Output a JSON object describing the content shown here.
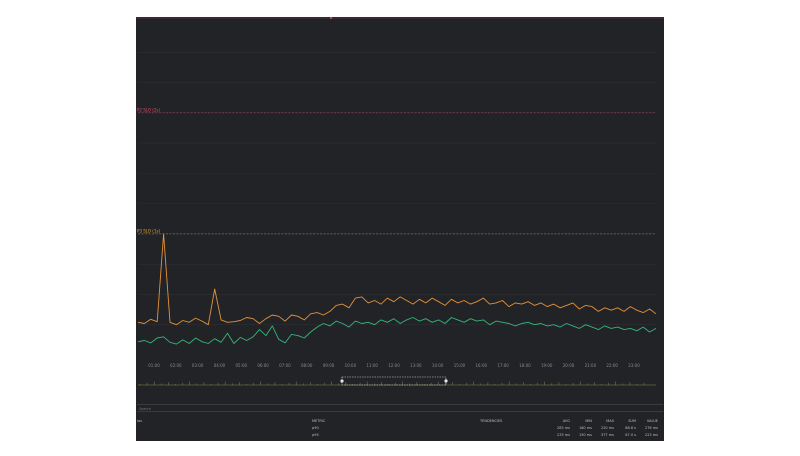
{
  "panel": {
    "background": "#222327"
  },
  "thresholds": [
    {
      "label": "P2 SLO (2s)",
      "value": 2000,
      "color": "#e0526a"
    },
    {
      "label": "P3 SLO (1s)",
      "value": 1000,
      "color": "#e6a23c"
    }
  ],
  "chart_data": {
    "type": "line",
    "title": "",
    "xlabel": "",
    "ylabel": "",
    "ylim": [
      0,
      2750
    ],
    "grid": true,
    "x_ticks": [
      "01:00",
      "02:00",
      "03:00",
      "04:00",
      "05:00",
      "06:00",
      "07:00",
      "08:00",
      "09:00",
      "10:00",
      "11:00",
      "12:00",
      "13:00",
      "14:00",
      "15:00",
      "16:00",
      "17:00",
      "18:00",
      "19:00",
      "20:00",
      "21:00",
      "22:00",
      "23:00"
    ],
    "series": [
      {
        "name": "p90",
        "color": "#e3913a",
        "values": [
          270,
          260,
          295,
          275,
          1000,
          270,
          250,
          285,
          270,
          305,
          280,
          250,
          545,
          290,
          270,
          275,
          285,
          310,
          300,
          260,
          300,
          330,
          320,
          280,
          330,
          320,
          290,
          340,
          350,
          330,
          360,
          410,
          420,
          390,
          470,
          480,
          430,
          450,
          420,
          470,
          440,
          480,
          450,
          420,
          460,
          430,
          470,
          440,
          410,
          460,
          430,
          450,
          420,
          440,
          470,
          420,
          430,
          450,
          400,
          430,
          420,
          440,
          410,
          430,
          400,
          420,
          390,
          410,
          430,
          380,
          410,
          400,
          360,
          390,
          370,
          390,
          360,
          400,
          370,
          350,
          380,
          340
        ]
      },
      {
        "name": "p95",
        "color": "#35b577",
        "values": [
          110,
          120,
          100,
          140,
          150,
          105,
          90,
          125,
          95,
          140,
          110,
          95,
          135,
          105,
          180,
          95,
          145,
          120,
          150,
          210,
          160,
          240,
          130,
          100,
          170,
          160,
          140,
          190,
          230,
          260,
          240,
          280,
          260,
          230,
          280,
          260,
          270,
          250,
          290,
          270,
          300,
          260,
          290,
          310,
          280,
          300,
          270,
          290,
          260,
          310,
          290,
          270,
          300,
          280,
          290,
          250,
          280,
          270,
          260,
          240,
          260,
          270,
          250,
          260,
          240,
          250,
          230,
          260,
          240,
          220,
          250,
          230,
          210,
          240,
          220,
          230,
          210,
          220,
          200,
          230,
          190,
          220
        ]
      }
    ]
  },
  "brush": {
    "ticks": 72
  },
  "search": {
    "placeholder": "Search"
  },
  "legend_table": {
    "headers": {
      "alias": "ias",
      "metric": "METRIC",
      "tendency": "TENDENCIES",
      "avg": "AVG",
      "min": "MIN",
      "max": "MAX",
      "sum": "SUM",
      "value": "VALUE"
    },
    "rows": [
      {
        "alias": "",
        "metric": "p90",
        "avg": "283 ms",
        "min": "180 ms",
        "max": "220 ms",
        "sum": "88.6 s",
        "value": "276 ms"
      },
      {
        "alias": "",
        "metric": "p95",
        "avg": "233 ms",
        "min": "150 ms",
        "max": "377 ms",
        "sum": "67.0 s",
        "value": "223 ms"
      }
    ]
  }
}
